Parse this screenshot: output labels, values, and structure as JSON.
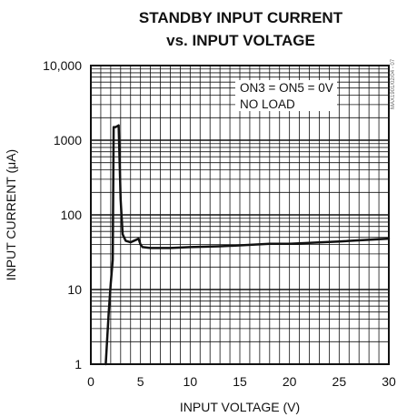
{
  "chart_data": {
    "type": "line",
    "title": [
      "STANDBY INPUT CURRENT",
      "vs. INPUT VOLTAGE"
    ],
    "xlabel": "INPUT VOLTAGE (V)",
    "ylabel": "INPUT CURRENT (μA)",
    "xlim": [
      0,
      30
    ],
    "ylim": [
      1,
      10000
    ],
    "yscale": "log",
    "x_ticks": [
      "0",
      "5",
      "10",
      "15",
      "20",
      "25",
      "30"
    ],
    "y_ticks": [
      "1",
      "10",
      "100",
      "1000",
      "10,000"
    ],
    "grid": true,
    "annotations": [
      "ON3 = ON5 = 0V",
      "NO LOAD"
    ],
    "side_text": "MAX1901/02/04 - 07",
    "series": [
      {
        "x": [
          1.5,
          1.8,
          2.0,
          2.2,
          2.3,
          2.5,
          2.8,
          3.0,
          3.2,
          3.5,
          4.0,
          4.5,
          4.8,
          5.0,
          5.2,
          6.0,
          8.0,
          10.0,
          13.0,
          15.0,
          18.0,
          20.0,
          25.0,
          30.0
        ],
        "y": [
          1,
          5,
          12,
          25,
          1500,
          1500,
          1580,
          160,
          55,
          45,
          43,
          46,
          48,
          40,
          37,
          36,
          36,
          37,
          38,
          39,
          41,
          41,
          44,
          48
        ]
      }
    ]
  },
  "colors": {
    "line": "#111111",
    "grid": "#111111",
    "background": "#ffffff"
  }
}
